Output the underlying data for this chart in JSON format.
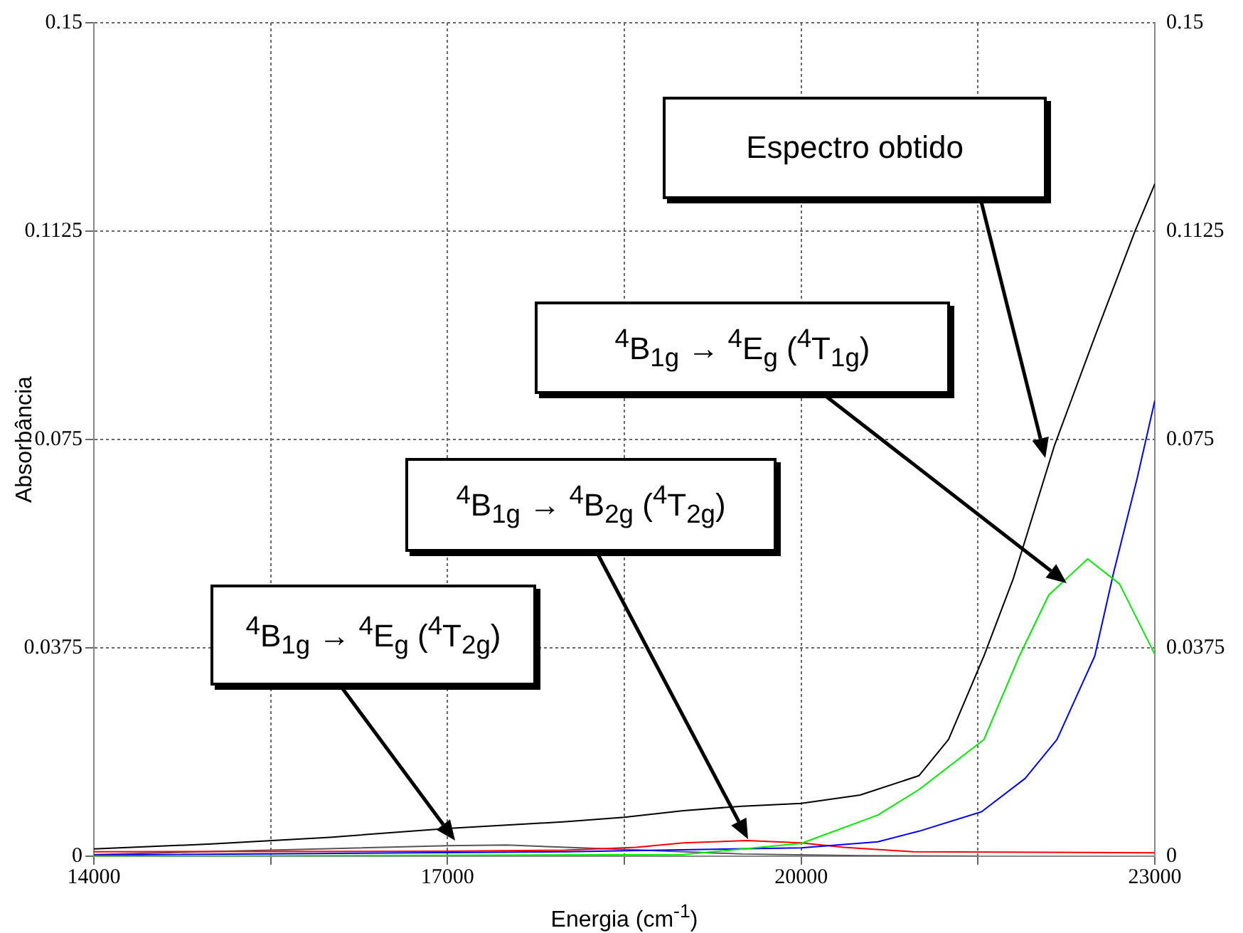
{
  "chart_data": {
    "type": "line",
    "xlabel": "Energia (cm$^{-1}$)",
    "ylabel": "Absorbância",
    "xlim": [
      14000,
      23000
    ],
    "xticks": [
      14000,
      {
        "value": 15500,
        "label": null
      },
      17000,
      {
        "value": 18500,
        "label": null
      },
      20000,
      {
        "value": 21500,
        "label": null
      },
      23000
    ],
    "ylim": [
      0,
      0.15
    ],
    "yticks": [
      0,
      0.0375,
      0.075,
      0.1125,
      0.15
    ],
    "y2lim": [
      0,
      0.15
    ],
    "y2ticks": [
      0,
      0.0375,
      0.075,
      0.1125,
      0.15
    ],
    "grid": true,
    "legend": false,
    "marker": "none",
    "line_style": "solid",
    "series": [
      {
        "color": "#000000",
        "x": [
          14000,
          15000,
          16000,
          17000,
          18000,
          18500,
          19000,
          19500,
          20000,
          20500,
          21000,
          21250,
          21550,
          21800,
          22150,
          22500,
          22830,
          23000
        ],
        "values": [
          0.0013,
          0.0022,
          0.0034,
          0.005,
          0.0062,
          0.007,
          0.0082,
          0.009,
          0.0095,
          0.011,
          0.0145,
          0.021,
          0.036,
          0.05,
          0.074,
          0.094,
          0.1124,
          0.121
        ]
      },
      {
        "color": "#00ee00",
        "x": [
          14000,
          19000,
          20000,
          20650,
          21000,
          21550,
          21850,
          22100,
          22430,
          22700,
          23000
        ],
        "values": [
          0,
          0.0003,
          0.0023,
          0.0074,
          0.012,
          0.021,
          0.036,
          0.047,
          0.0535,
          0.049,
          0.0363
        ]
      },
      {
        "color": "#0000ff",
        "x": [
          14000,
          18000,
          20000,
          20650,
          21000,
          21530,
          21900,
          22170,
          22490,
          22650,
          22850,
          23000
        ],
        "values": [
          0.0002,
          0.0008,
          0.0015,
          0.0026,
          0.0045,
          0.008,
          0.014,
          0.021,
          0.036,
          0.051,
          0.068,
          0.082
        ]
      },
      {
        "color": "#ff0000",
        "x": [
          14000,
          17000,
          18000,
          18600,
          19000,
          19540,
          20000,
          20360,
          20950,
          23000
        ],
        "values": [
          0.0008,
          0.0009,
          0.0011,
          0.0016,
          0.0024,
          0.0028,
          0.0024,
          0.0016,
          0.0008,
          0.0006
        ]
      },
      {
        "color": "#555555",
        "x": [
          14000,
          15500,
          17000,
          17500,
          18500,
          19500,
          20500,
          21500
        ],
        "values": [
          0.0003,
          0.0011,
          0.0019,
          0.002,
          0.0012,
          0.0004,
          0.0001,
          0
        ]
      }
    ],
    "annotations": [
      "Espectro obtido",
      "$^{4}$B$_{1g}$ → $^{4}$E$_{g}$ ($^{4}$T$_{1g}$)",
      "$^{4}$B$_{1g}$ → $^{4}$B$_{2g}$ ($^{4}$T$_{2g}$)",
      "$^{4}$B$_{1g}$ → $^{4}$E$_{g}$ ($^{4}$T$_{2g}$)"
    ]
  }
}
